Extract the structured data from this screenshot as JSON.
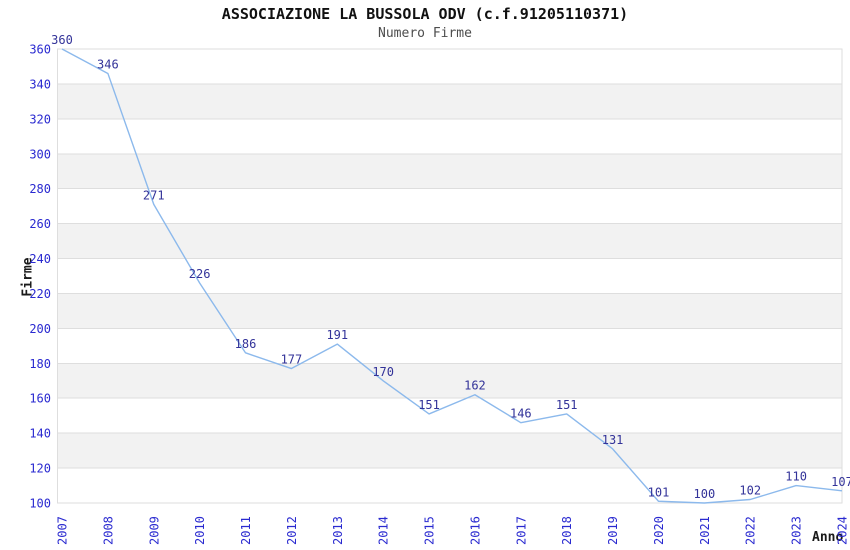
{
  "chart_data": {
    "type": "line",
    "title": "ASSOCIAZIONE LA BUSSOLA ODV (c.f.91205110371)",
    "subtitle": "Numero Firme",
    "xlabel": "Anno",
    "ylabel": "Firme",
    "x": [
      "2007",
      "2008",
      "2009",
      "2010",
      "2011",
      "2012",
      "2013",
      "2014",
      "2015",
      "2016",
      "2017",
      "2018",
      "2019",
      "2020",
      "2021",
      "2022",
      "2023",
      "2024"
    ],
    "series": [
      {
        "name": "Numero Firme",
        "values": [
          360,
          346,
          271,
          226,
          186,
          177,
          191,
          170,
          151,
          162,
          146,
          151,
          131,
          101,
          100,
          102,
          110,
          107
        ]
      }
    ],
    "ylim": [
      100,
      360
    ],
    "ytick_step": 20,
    "yticks": [
      100,
      120,
      140,
      160,
      180,
      200,
      220,
      240,
      260,
      280,
      300,
      320,
      340,
      360
    ],
    "grid": "horizontal",
    "alternating_bands": true,
    "legend_position": "none",
    "x_tick_rotation_deg": 90,
    "data_labels_shown": true,
    "colors": {
      "line": "#8cb9ec",
      "data_label": "#333399",
      "tick_label": "#2a2ad0",
      "band": "#f2f2f2",
      "gridline": "#dedede",
      "title": "#111111",
      "subtitle": "#4d4d4d",
      "axis_title": "#1a1a1a",
      "background": "#ffffff"
    }
  }
}
